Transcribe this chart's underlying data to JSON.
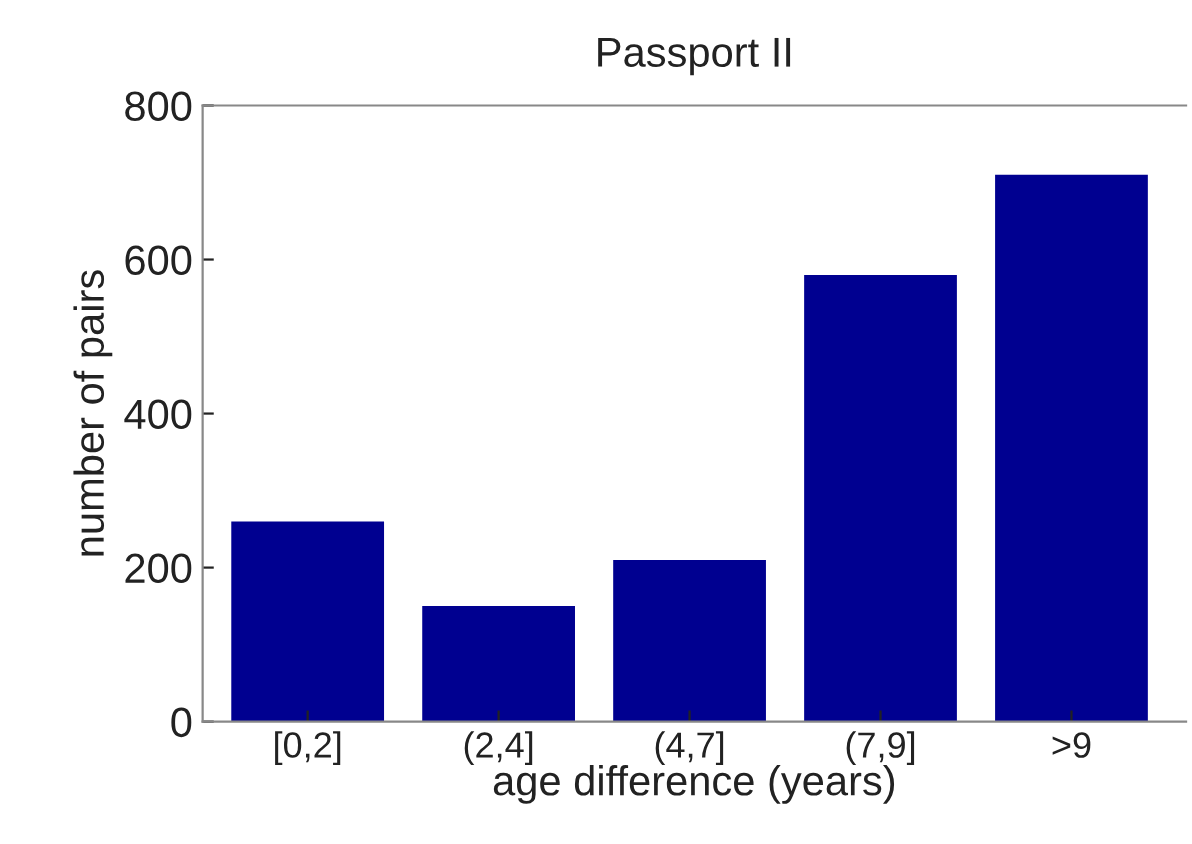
{
  "chart_data": {
    "type": "bar",
    "title": "Passport II",
    "xlabel": "age difference (years)",
    "ylabel": "number of pairs",
    "categories": [
      "[0,2]",
      "(2,4]",
      "(4,7]",
      "(7,9]",
      ">9"
    ],
    "values": [
      260,
      150,
      210,
      580,
      710
    ],
    "color": "#000090",
    "ylim": [
      0,
      800
    ],
    "yticks": [
      0,
      200,
      400,
      600,
      800
    ],
    "grid": false
  }
}
